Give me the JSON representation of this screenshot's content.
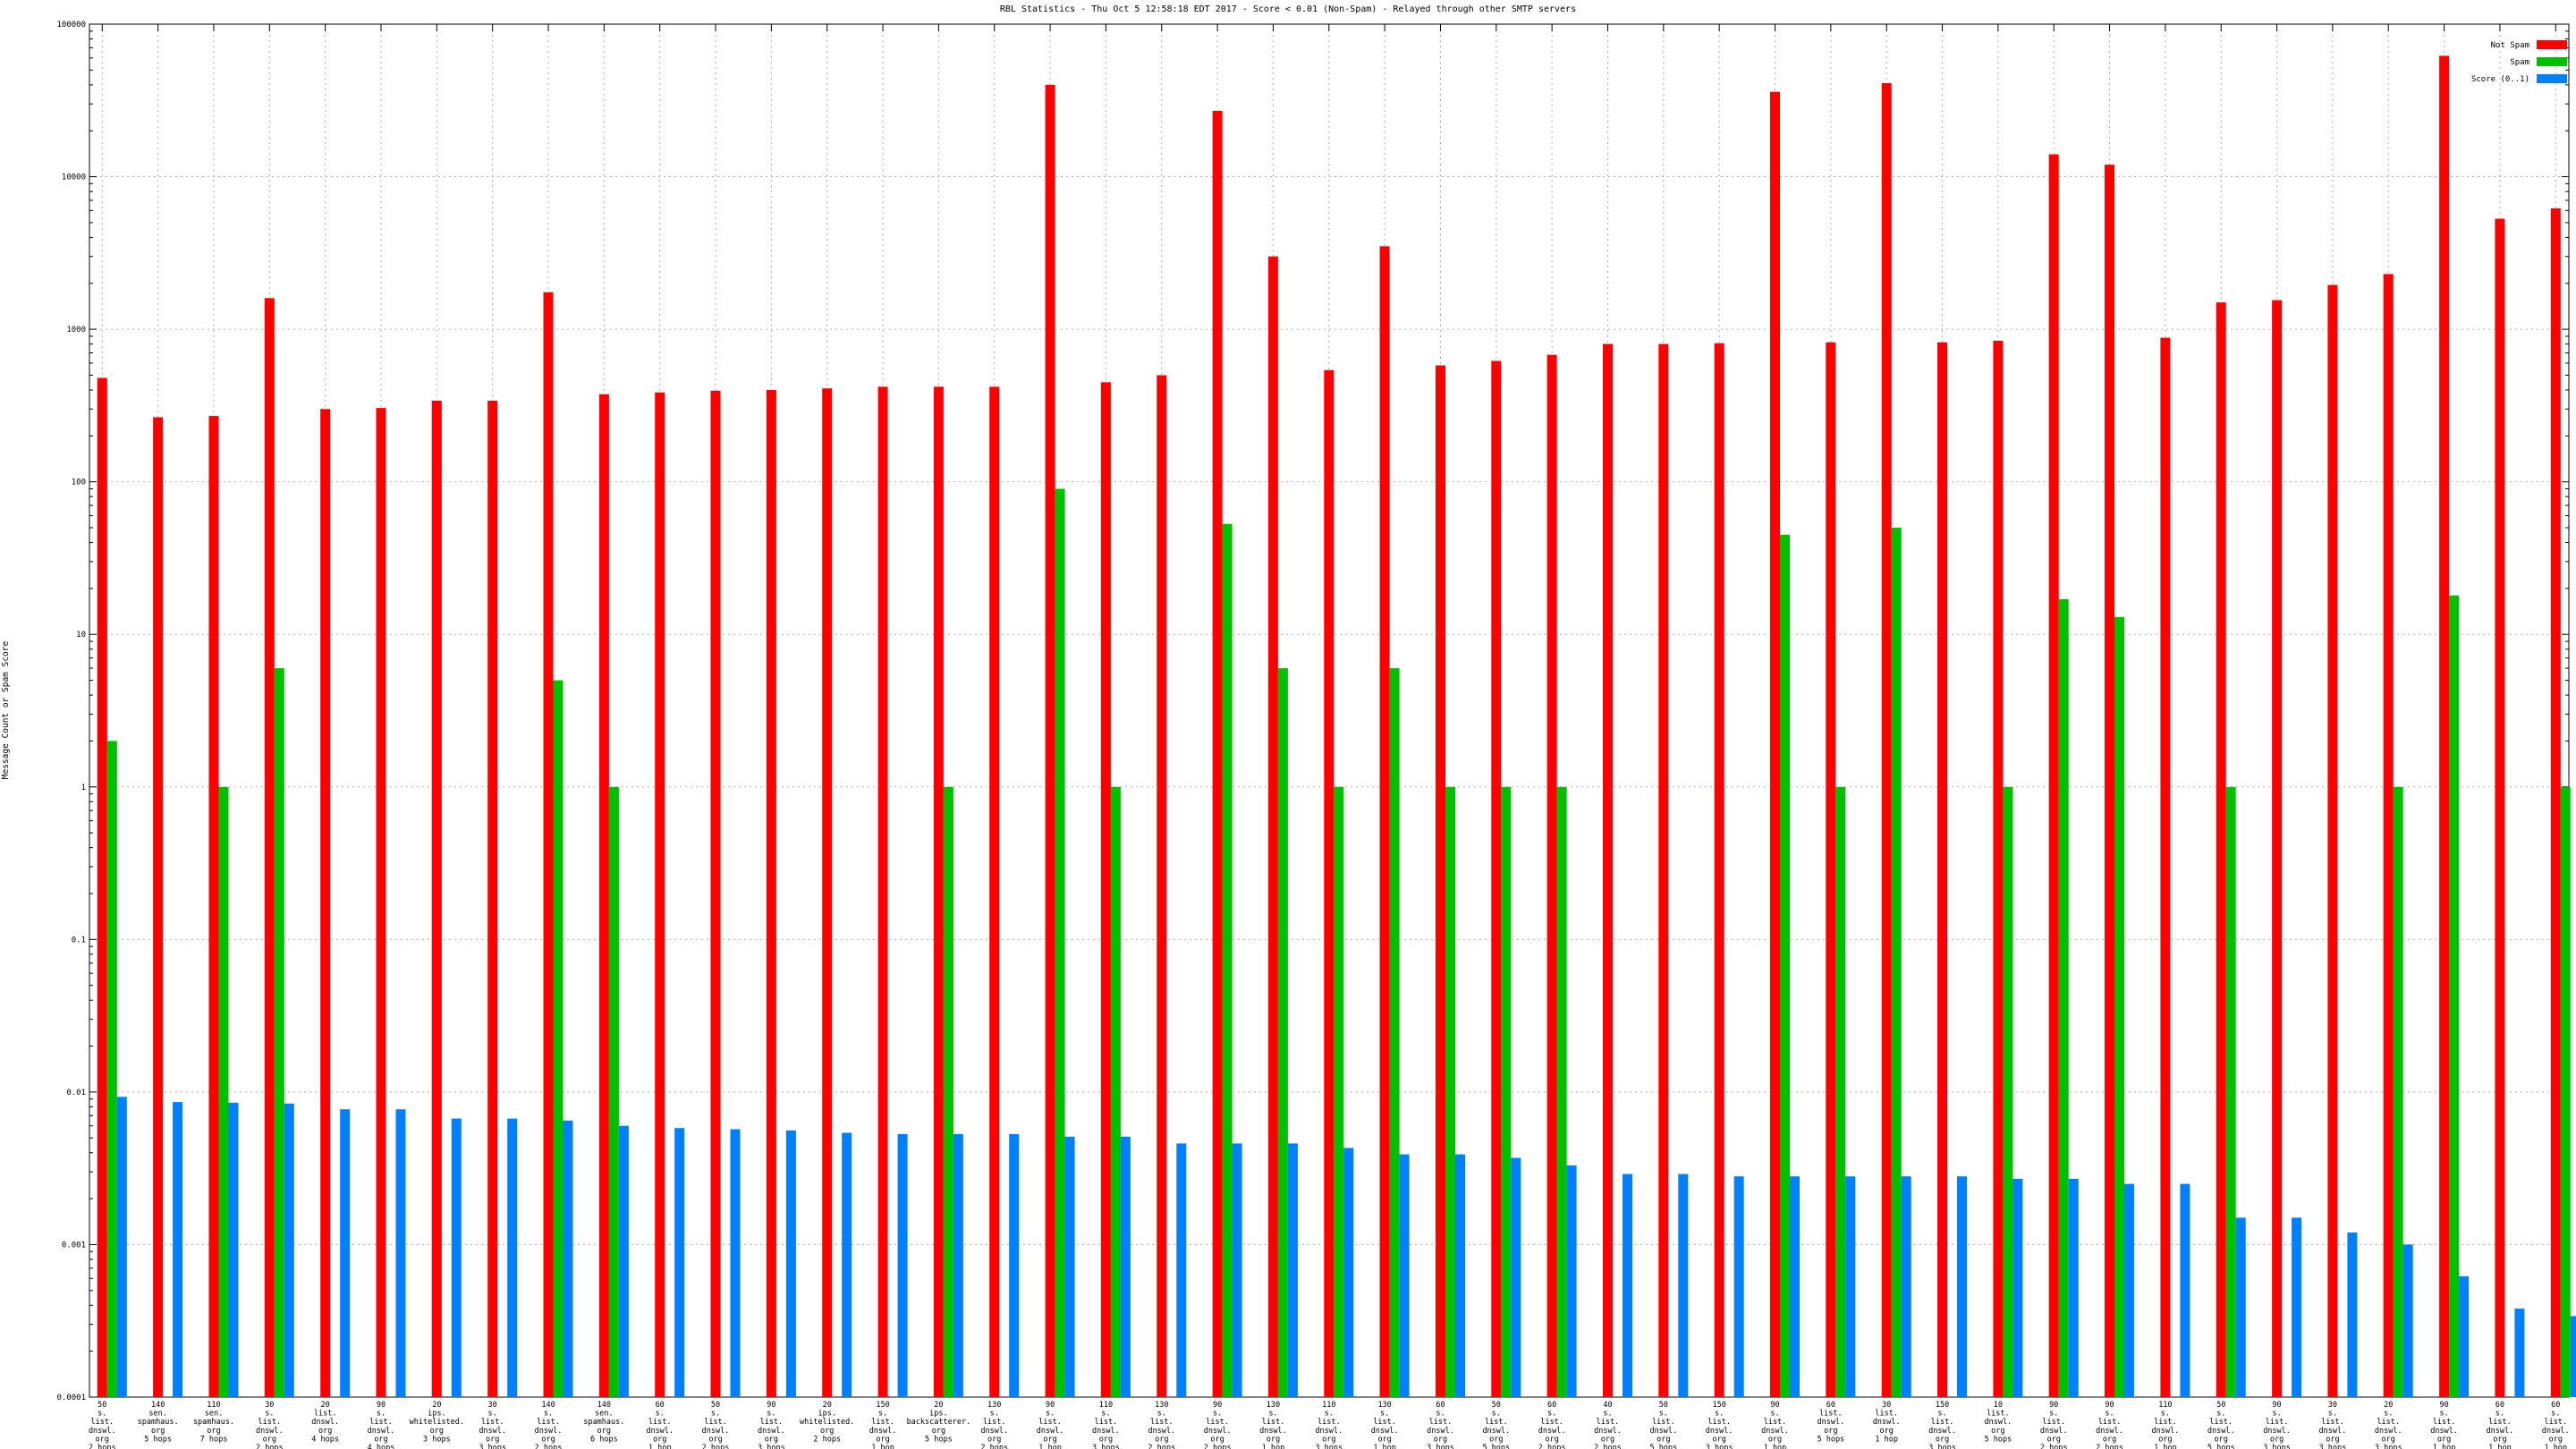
{
  "chart_data": {
    "type": "bar",
    "title": "RBL Statistics - Thu Oct  5 12:58:18 EDT 2017 - Score < 0.01 (Non-Spam) - Relayed through other SMTP servers",
    "ylabel": "Message Count or Spam Score",
    "xlabel": "",
    "scale": "log",
    "ylim": [
      0.0001,
      100000
    ],
    "grid": true,
    "legend_position": "top-right",
    "y_ticks": [
      "0.0001",
      "0.001",
      "0.01",
      "0.1",
      "1",
      "10",
      "100",
      "1000",
      "10000",
      "100000"
    ],
    "categories": [
      "50 s. list. dnswl. org 2 hops",
      "140 sen. spamhaus. org 5 hops",
      "110 sen. spamhaus. org 7 hops",
      "30 s. list. dnswl. org 2 hops",
      "20 list. dnswl. org 4 hops",
      "90 s. list. dnswl. org 4 hops",
      "20 ips. whitelisted. org 3 hops",
      "30 s. list. dnswl. org 3 hops",
      "140 s. list. dnswl. org 2 hops",
      "140 sen. spamhaus. org 6 hops",
      "60 s. list. dnswl. org 1 hop",
      "50 s. list. dnswl. org 2 hops",
      "90 s. list. dnswl. org 3 hops",
      "20 ips. whitelisted. org 2 hops",
      "150 s. list. dnswl. org 1 hop",
      "20 ips. backscatterer. org 5 hops",
      "130 s. list. dnswl. org 2 hops",
      "90 s. list. dnswl. org 1 hop",
      "110 s. list. dnswl. org 3 hops",
      "130 s. list. dnswl. org 2 hops",
      "90 s. list. dnswl. org 2 hops",
      "130 s. list. dnswl. org 1 hop",
      "110 s. list. dnswl. org 3 hops",
      "130 s. list. dnswl. org 1 hop",
      "60 s. list. dnswl. org 3 hops",
      "50 s. list. dnswl. org 5 hops",
      "60 s. list. dnswl. org 2 hops",
      "40 s. list. dnswl. org 2 hops",
      "50 s. list. dnswl. org 5 hops",
      "150 s. list. dnswl. org 3 hops",
      "90 s. list. dnswl. org 1 hop",
      "60 list. dnswl. org 5 hops",
      "30 list. dnswl. org 1 hop",
      "150 s. list. dnswl. org 3 hops",
      "10 list. dnswl. org 5 hops",
      "90 s. list. dnswl. org 2 hops",
      "90 s. list. dnswl. org 2 hops",
      "110 s. list. dnswl. org 1 hop",
      "50 s. list. dnswl. org 5 hops",
      "90 s. list. dnswl. org 3 hops",
      "30 s. list. dnswl. org 3 hops",
      "20 s. list. dnswl. org 3 hops",
      "90 s. list. dnswl. org 1 hop",
      "60 s. list. dnswl. org 1 hop",
      "60 s. list. dnswl. org 1 hop"
    ],
    "series": [
      {
        "name": "Not Spam",
        "color": "#ff0000",
        "values": [
          480,
          265,
          270,
          1600,
          300,
          305,
          340,
          340,
          1750,
          375,
          385,
          395,
          400,
          410,
          420,
          420,
          420,
          40000,
          450,
          500,
          27000,
          3000,
          540,
          3500,
          580,
          620,
          680,
          800,
          800,
          810,
          36000,
          820,
          41000,
          820,
          840,
          14000,
          12000,
          880,
          1500,
          1550,
          1950,
          2300,
          62000,
          5300,
          6200
        ]
      },
      {
        "name": "Spam",
        "color": "#00c000",
        "values": [
          2,
          0,
          1,
          6,
          0,
          0,
          0,
          0,
          5,
          1,
          0,
          0,
          0,
          0,
          0,
          1,
          0,
          90,
          1,
          0,
          53,
          6,
          1,
          6,
          1,
          1,
          1,
          0,
          0,
          0,
          45,
          1,
          50,
          0,
          1,
          17,
          13,
          0,
          1,
          0,
          0,
          1,
          18,
          0,
          1
        ]
      },
      {
        "name": "Score (0..1)",
        "color": "#0080ff",
        "values": [
          0.0093,
          0.0086,
          0.0085,
          0.0084,
          0.0077,
          0.0077,
          0.0067,
          0.0067,
          0.0065,
          0.006,
          0.0058,
          0.0057,
          0.0056,
          0.0054,
          0.0053,
          0.0053,
          0.0053,
          0.0051,
          0.0051,
          0.0046,
          0.0046,
          0.0046,
          0.0043,
          0.0039,
          0.0039,
          0.0037,
          0.0033,
          0.0029,
          0.0029,
          0.0028,
          0.0028,
          0.0028,
          0.0028,
          0.0028,
          0.0027,
          0.0027,
          0.0025,
          0.0025,
          0.0015,
          0.0015,
          0.0012,
          0.001,
          0.00062,
          0.00038,
          0.00034
        ]
      }
    ]
  }
}
